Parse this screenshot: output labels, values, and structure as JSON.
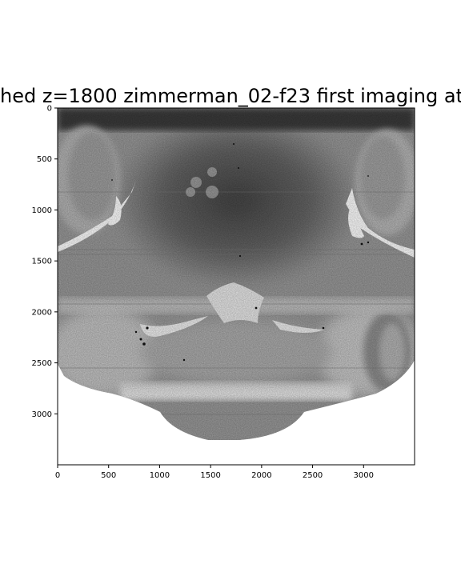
{
  "figure": {
    "title": "hed z=1800 zimmerman_02-f23 first imaging at",
    "colormap": "gray_r",
    "background_color": "#ffffff",
    "axis_color": "#000000"
  },
  "x_axis": {
    "range": [
      0,
      3500
    ],
    "ticks": [
      0,
      500,
      1000,
      1500,
      2000,
      2500,
      3000
    ],
    "tick_labels": [
      "0",
      "500",
      "1000",
      "1500",
      "2000",
      "2500",
      "3000"
    ]
  },
  "y_axis": {
    "range": [
      0,
      3500
    ],
    "inverted": true,
    "ticks": [
      0,
      500,
      1000,
      1500,
      2000,
      2500,
      3000
    ],
    "tick_labels": [
      "0",
      "500",
      "1000",
      "1500",
      "2000",
      "2500",
      "3000"
    ]
  }
}
